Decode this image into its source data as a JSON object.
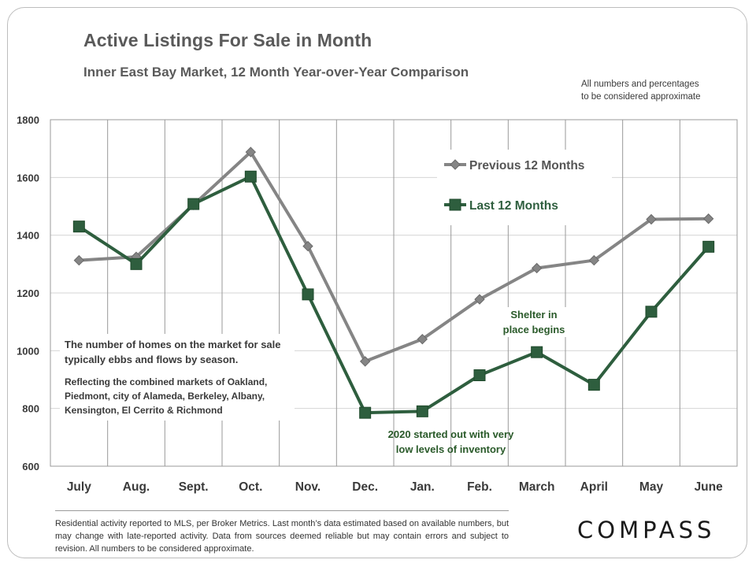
{
  "header": {
    "title": "Active Listings For Sale in Month",
    "subtitle": "Inner East Bay Market,  12 Month  Year-over-Year  Comparison",
    "disclaimer_line1": "All numbers and percentages",
    "disclaimer_line2": "to be considered approximate"
  },
  "chart_data": {
    "type": "line",
    "title": "Active Listings For Sale in Month",
    "subtitle": "Inner East Bay Market,  12 Month  Year-over-Year  Comparison",
    "categories": [
      "July",
      "Aug.",
      "Sept.",
      "Oct.",
      "Nov.",
      "Dec.",
      "Jan.",
      "Feb.",
      "March",
      "April",
      "May",
      "June"
    ],
    "ylim": [
      600,
      1800
    ],
    "yticks": [
      600,
      800,
      1000,
      1200,
      1400,
      1600,
      1800
    ],
    "grid": {
      "vertical": true,
      "horizontal": true
    },
    "legend_position": "top-right",
    "series": [
      {
        "name": "Previous 12 Months",
        "color": "#858585",
        "marker": "diamond",
        "values": [
          1313,
          1325,
          1505,
          1688,
          1362,
          963,
          1040,
          1178,
          1286,
          1313,
          1455,
          1457
        ]
      },
      {
        "name": "Last 12 Months",
        "color": "#2e5e3e",
        "marker": "square",
        "values": [
          1430,
          1300,
          1508,
          1603,
          1195,
          785,
          790,
          915,
          995,
          882,
          1135,
          1360
        ]
      }
    ]
  },
  "notes": {
    "main": "The number of homes on the market for sale typically ebbs and flows by season.",
    "sub": "Reflecting the combined markets of Oakland, Piedmont, city of Alameda, Berkeley, Albany, Kensington, El Cerrito & Richmond"
  },
  "annotations": {
    "shelter_line1": "Shelter in",
    "shelter_line2": "place  begins",
    "low_line1": "2020 started out with very",
    "low_line2": "low levels of inventory"
  },
  "footer": {
    "text": "Residential activity reported to MLS, per Broker Metrics. Last month’s data estimated based on available numbers, but may change with late-reported activity. Data from sources deemed reliable but may contain errors and subject to revision. All numbers to be considered approximate."
  },
  "brand": {
    "logo": "COMPASS"
  }
}
